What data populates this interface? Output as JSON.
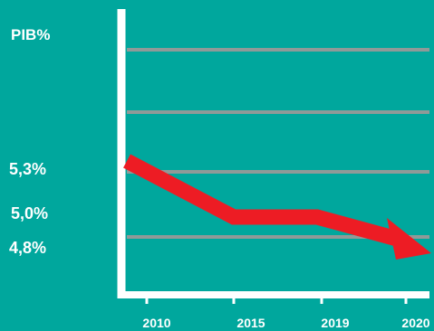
{
  "chart_data": {
    "type": "line",
    "ylabel": "PIB%",
    "categories": [
      "2010",
      "2015",
      "2019",
      "2020"
    ],
    "series": [
      {
        "values": [
          5.3,
          5.0,
          5.0,
          4.8
        ]
      }
    ],
    "y_tick_labels": [
      "5,3%",
      "5,0%",
      "4,8%"
    ],
    "grid": true,
    "colors": {
      "background": "#00a79d",
      "axis": "#ffffff",
      "gridline": "#8f9a98",
      "line": "#ed1c24",
      "text": "#ffffff"
    }
  }
}
